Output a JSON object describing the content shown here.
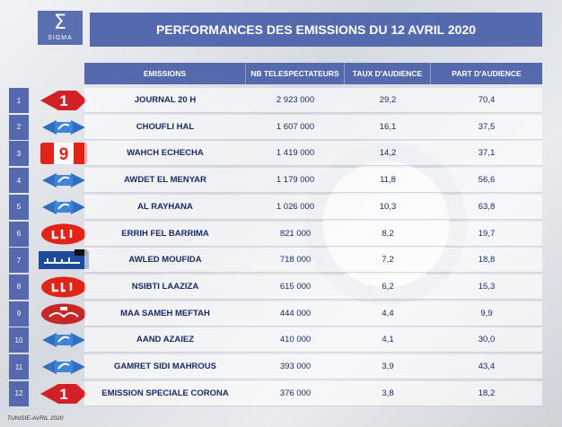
{
  "header": {
    "logo_text": "SIGMA",
    "title": "PERFORMANCES DES EMISSIONS DU 12 AVRIL 2020"
  },
  "columns": [
    "EMISSIONS",
    "NB TELESPECTATEURS",
    "TAUX D'AUDIENCE",
    "PART D'AUDIENCE"
  ],
  "rows": [
    {
      "num": "1",
      "channel": "watania1-logo",
      "emission": "JOURNAL 20 H",
      "viewers": "2 923 000",
      "taux": "29,2",
      "part": "70,4"
    },
    {
      "num": "2",
      "channel": "watania2-logo",
      "emission": "CHOUFLI HAL",
      "viewers": "1 607 000",
      "taux": "16,1",
      "part": "37,5"
    },
    {
      "num": "3",
      "channel": "attessia-logo",
      "emission": "WAHCH ECHECHA",
      "viewers": "1 419 000",
      "taux": "14,2",
      "part": "37,1"
    },
    {
      "num": "4",
      "channel": "watania2-logo",
      "emission": "AWDET EL MENYAR",
      "viewers": "1 179 000",
      "taux": "11,8",
      "part": "56,6"
    },
    {
      "num": "5",
      "channel": "watania2-logo",
      "emission": "AL RAYHANA",
      "viewers": "1 026 000",
      "taux": "10,3",
      "part": "63,8"
    },
    {
      "num": "6",
      "channel": "nessma-logo",
      "emission": "ERRIH FEL BARRIMA",
      "viewers": "821 000",
      "taux": "8,2",
      "part": "19,7"
    },
    {
      "num": "7",
      "channel": "attounssia-logo",
      "emission": "AWLED MOUFIDA",
      "viewers": "718 000",
      "taux": "7,2",
      "part": "18,8"
    },
    {
      "num": "8",
      "channel": "nessma-logo",
      "emission": "NSIBTI LAAZIZA",
      "viewers": "615 000",
      "taux": "6,2",
      "part": "15,3"
    },
    {
      "num": "9",
      "channel": "hannibal-logo",
      "emission": "MAA SAMEH MEFTAH",
      "viewers": "444 000",
      "taux": "4,4",
      "part": "9,9"
    },
    {
      "num": "10",
      "channel": "watania2-logo",
      "emission": "AAND AZAIEZ",
      "viewers": "410 000",
      "taux": "4,1",
      "part": "30,0"
    },
    {
      "num": "11",
      "channel": "watania2-logo",
      "emission": "GAMRET SIDI MAHROUS",
      "viewers": "393 000",
      "taux": "3,9",
      "part": "43,4"
    },
    {
      "num": "12",
      "channel": "watania1-logo",
      "emission": "EMISSION SPECIALE CORONA",
      "viewers": "376 000",
      "taux": "3,8",
      "part": "18,2"
    }
  ],
  "footer": "TUNISIE-AVRIL 2020"
}
